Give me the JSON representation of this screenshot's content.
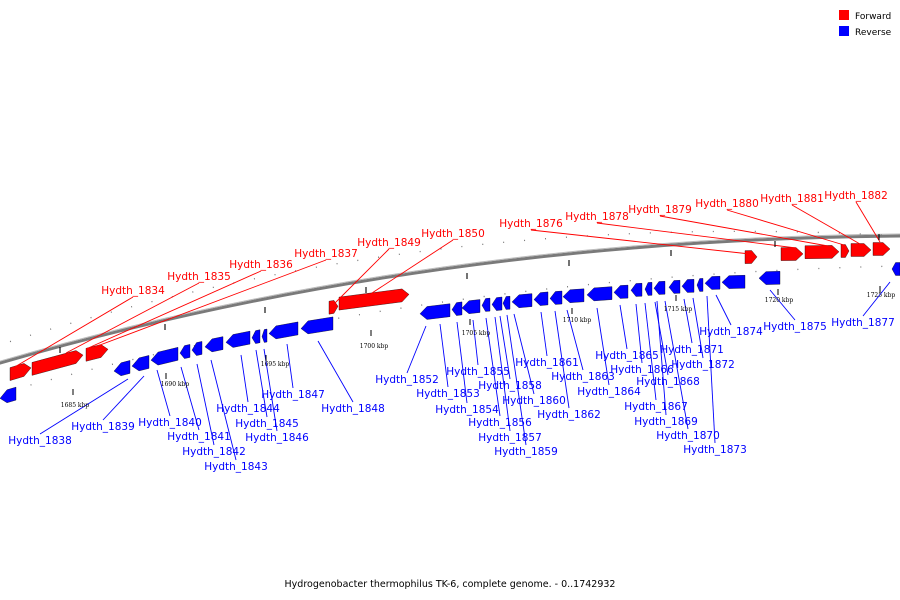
{
  "caption": "Hydrogenobacter thermophilus TK-6, complete genome. - 0..1742932",
  "legend": [
    {
      "label": "Forward",
      "color": "#ff0000"
    },
    {
      "label": "Reverse",
      "color": "#0000ff"
    }
  ],
  "colors": {
    "forward": "#ff0000",
    "reverse": "#0000ff",
    "backbone": "#808080"
  },
  "ticks": [
    "1685 kbp",
    "1690 kbp",
    "1695 kbp",
    "1700 kbp",
    "1705 kbp",
    "1710 kbp",
    "1715 kbp",
    "1720 kbp",
    "1725 kbp"
  ],
  "forward_genes": [
    "Hydth_1834",
    "Hydth_1835",
    "Hydth_1836",
    "Hydth_1837",
    "Hydth_1849",
    "Hydth_1850",
    "Hydth_1876",
    "Hydth_1878",
    "Hydth_1879",
    "Hydth_1880",
    "Hydth_1881",
    "Hydth_1882"
  ],
  "reverse_genes": [
    "Hydth_1838",
    "Hydth_1839",
    "Hydth_1840",
    "Hydth_1841",
    "Hydth_1842",
    "Hydth_1843",
    "Hydth_1844",
    "Hydth_1845",
    "Hydth_1846",
    "Hydth_1847",
    "Hydth_1848",
    "Hydth_1852",
    "Hydth_1853",
    "Hydth_1854",
    "Hydth_1855",
    "Hydth_1856",
    "Hydth_1857",
    "Hydth_1858",
    "Hydth_1859",
    "Hydth_1860",
    "Hydth_1861",
    "Hydth_1862",
    "Hydth_1863",
    "Hydth_1864",
    "Hydth_1865",
    "Hydth_1866",
    "Hydth_1867",
    "Hydth_1868",
    "Hydth_1869",
    "Hydth_1870",
    "Hydth_1871",
    "Hydth_1872",
    "Hydth_1873",
    "Hydth_1874",
    "Hydth_1875",
    "Hydth_1877"
  ]
}
